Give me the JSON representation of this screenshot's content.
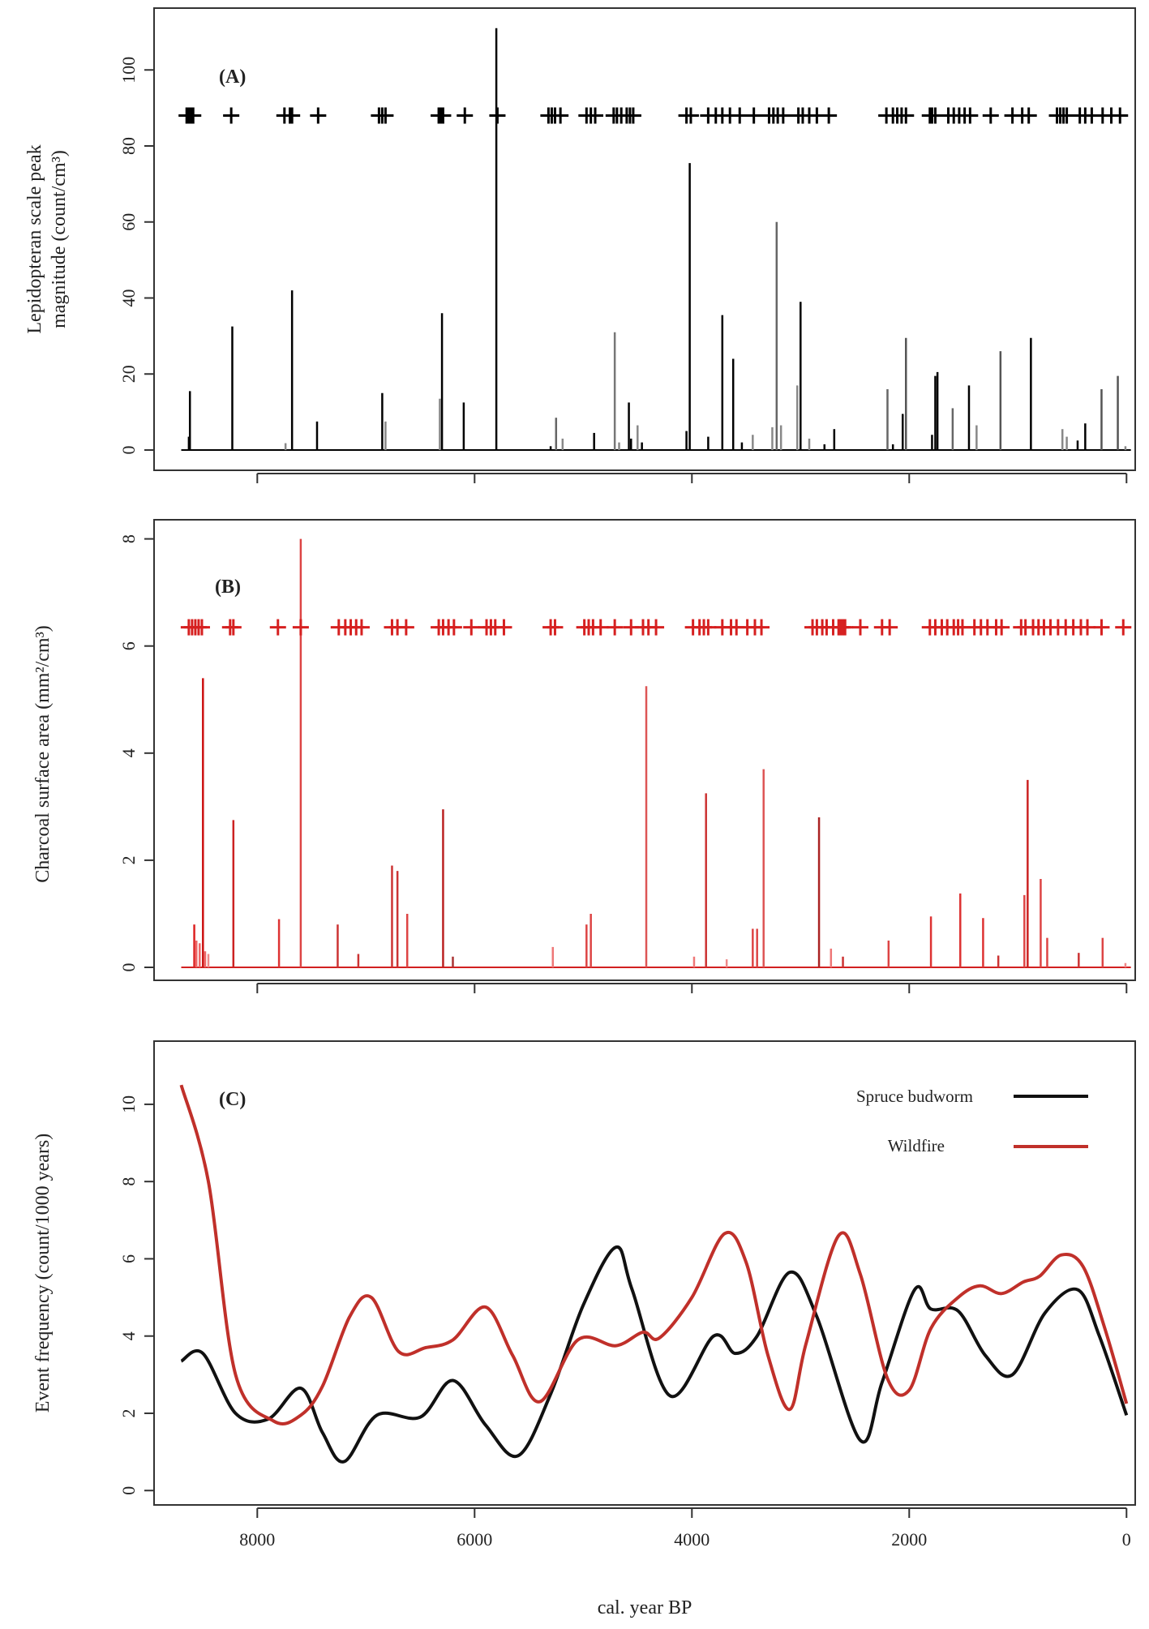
{
  "figure": {
    "xlabel": "cal. year BP",
    "x_ticks": [
      8000,
      6000,
      4000,
      2000,
      0
    ]
  },
  "chart_data": [
    {
      "type": "bar",
      "panel_label": "(A)",
      "ylabel_line1": "Lepidopteran scale peak",
      "ylabel_line2": "magnitude (count/cm³)",
      "xlim": [
        8950,
        -80
      ],
      "ylim": [
        0,
        112
      ],
      "y_ticks": [
        0,
        20,
        40,
        60,
        80,
        100
      ],
      "bar_color": "#000000",
      "bars": [
        {
          "x": 8620,
          "v": 15.5,
          "c": "#000"
        },
        {
          "x": 8630,
          "v": 3.5,
          "c": "#000"
        },
        {
          "x": 8230,
          "v": 32.5,
          "c": "#000"
        },
        {
          "x": 7740,
          "v": 1.8,
          "c": "#888"
        },
        {
          "x": 7680,
          "v": 42,
          "c": "#000"
        },
        {
          "x": 7450,
          "v": 7.5,
          "c": "#000"
        },
        {
          "x": 6850,
          "v": 15,
          "c": "#000"
        },
        {
          "x": 6820,
          "v": 7.5,
          "c": "#888"
        },
        {
          "x": 6320,
          "v": 13.5,
          "c": "#888"
        },
        {
          "x": 6300,
          "v": 36,
          "c": "#000"
        },
        {
          "x": 6100,
          "v": 12.5,
          "c": "#000"
        },
        {
          "x": 5800,
          "v": 111,
          "c": "#000"
        },
        {
          "x": 5300,
          "v": 1,
          "c": "#000"
        },
        {
          "x": 5250,
          "v": 8.5,
          "c": "#666"
        },
        {
          "x": 5190,
          "v": 3,
          "c": "#888"
        },
        {
          "x": 4900,
          "v": 4.5,
          "c": "#000"
        },
        {
          "x": 4710,
          "v": 31,
          "c": "#777"
        },
        {
          "x": 4670,
          "v": 2,
          "c": "#888"
        },
        {
          "x": 4580,
          "v": 12.5,
          "c": "#000"
        },
        {
          "x": 4560,
          "v": 3,
          "c": "#000"
        },
        {
          "x": 4500,
          "v": 6.5,
          "c": "#888"
        },
        {
          "x": 4460,
          "v": 2,
          "c": "#000"
        },
        {
          "x": 4050,
          "v": 5,
          "c": "#000"
        },
        {
          "x": 4020,
          "v": 75.5,
          "c": "#000"
        },
        {
          "x": 3850,
          "v": 3.5,
          "c": "#000"
        },
        {
          "x": 3720,
          "v": 35.5,
          "c": "#000"
        },
        {
          "x": 3620,
          "v": 24,
          "c": "#000"
        },
        {
          "x": 3540,
          "v": 2,
          "c": "#000"
        },
        {
          "x": 3440,
          "v": 4,
          "c": "#888"
        },
        {
          "x": 3260,
          "v": 6,
          "c": "#888"
        },
        {
          "x": 3220,
          "v": 60,
          "c": "#666"
        },
        {
          "x": 3180,
          "v": 6.5,
          "c": "#888"
        },
        {
          "x": 3030,
          "v": 17,
          "c": "#888"
        },
        {
          "x": 3000,
          "v": 39,
          "c": "#000"
        },
        {
          "x": 2920,
          "v": 3,
          "c": "#888"
        },
        {
          "x": 2780,
          "v": 1.5,
          "c": "#000"
        },
        {
          "x": 2690,
          "v": 5.5,
          "c": "#000"
        },
        {
          "x": 2200,
          "v": 16,
          "c": "#666"
        },
        {
          "x": 2150,
          "v": 1.5,
          "c": "#000"
        },
        {
          "x": 2060,
          "v": 9.5,
          "c": "#000"
        },
        {
          "x": 2030,
          "v": 29.5,
          "c": "#555"
        },
        {
          "x": 1790,
          "v": 4,
          "c": "#000"
        },
        {
          "x": 1760,
          "v": 19.5,
          "c": "#000"
        },
        {
          "x": 1740,
          "v": 20.5,
          "c": "#000"
        },
        {
          "x": 1600,
          "v": 11,
          "c": "#666"
        },
        {
          "x": 1450,
          "v": 17,
          "c": "#000"
        },
        {
          "x": 1380,
          "v": 6.5,
          "c": "#888"
        },
        {
          "x": 1160,
          "v": 26,
          "c": "#555"
        },
        {
          "x": 880,
          "v": 29.5,
          "c": "#000"
        },
        {
          "x": 590,
          "v": 5.5,
          "c": "#888"
        },
        {
          "x": 550,
          "v": 3.5,
          "c": "#888"
        },
        {
          "x": 450,
          "v": 2.5,
          "c": "#000"
        },
        {
          "x": 380,
          "v": 7,
          "c": "#000"
        },
        {
          "x": 230,
          "v": 16,
          "c": "#555"
        },
        {
          "x": 80,
          "v": 19.5,
          "c": "#555"
        },
        {
          "x": 10,
          "v": 1,
          "c": "#888"
        }
      ],
      "events_y": 88,
      "events_color": "#000000",
      "events": [
        8650,
        8630,
        8610,
        8590,
        8240,
        7750,
        7700,
        7680,
        7440,
        6880,
        6850,
        6820,
        6330,
        6310,
        6290,
        6090,
        5790,
        5320,
        5290,
        5260,
        5210,
        4970,
        4930,
        4890,
        4720,
        4690,
        4650,
        4600,
        4570,
        4540,
        4050,
        4010,
        3850,
        3780,
        3720,
        3650,
        3560,
        3430,
        3290,
        3250,
        3210,
        3160,
        3020,
        2980,
        2920,
        2850,
        2740,
        2210,
        2150,
        2110,
        2070,
        2030,
        1810,
        1790,
        1760,
        1640,
        1590,
        1540,
        1490,
        1440,
        1250,
        1050,
        960,
        900,
        640,
        610,
        580,
        550,
        430,
        380,
        320,
        220,
        140,
        60
      ]
    },
    {
      "type": "bar",
      "panel_label": "(B)",
      "ylabel": "Charcoal surface area (mm²/cm³)",
      "xlim": [
        8950,
        -80
      ],
      "ylim": [
        0,
        8.1
      ],
      "y_ticks": [
        0,
        2,
        4,
        6,
        8
      ],
      "bar_color": "#d22020",
      "bars": [
        {
          "x": 8580,
          "v": 0.8,
          "c": "#d22"
        },
        {
          "x": 8560,
          "v": 0.5,
          "c": "#e66"
        },
        {
          "x": 8530,
          "v": 0.45,
          "c": "#e66"
        },
        {
          "x": 8500,
          "v": 5.4,
          "c": "#c11"
        },
        {
          "x": 8480,
          "v": 0.3,
          "c": "#e66"
        },
        {
          "x": 8450,
          "v": 0.25,
          "c": "#e88"
        },
        {
          "x": 8220,
          "v": 2.75,
          "c": "#c22"
        },
        {
          "x": 7800,
          "v": 0.9,
          "c": "#d33"
        },
        {
          "x": 7600,
          "v": 8,
          "c": "#d44"
        },
        {
          "x": 7260,
          "v": 0.8,
          "c": "#c33"
        },
        {
          "x": 7070,
          "v": 0.25,
          "c": "#c33"
        },
        {
          "x": 6760,
          "v": 1.9,
          "c": "#c33"
        },
        {
          "x": 6710,
          "v": 1.8,
          "c": "#c33"
        },
        {
          "x": 6620,
          "v": 1,
          "c": "#d44"
        },
        {
          "x": 6290,
          "v": 2.95,
          "c": "#b22"
        },
        {
          "x": 6200,
          "v": 0.2,
          "c": "#a33"
        },
        {
          "x": 5280,
          "v": 0.38,
          "c": "#e77"
        },
        {
          "x": 4970,
          "v": 0.8,
          "c": "#d44"
        },
        {
          "x": 4930,
          "v": 1,
          "c": "#d44"
        },
        {
          "x": 4420,
          "v": 5.25,
          "c": "#d55"
        },
        {
          "x": 3980,
          "v": 0.2,
          "c": "#e77"
        },
        {
          "x": 3870,
          "v": 3.25,
          "c": "#c33"
        },
        {
          "x": 3680,
          "v": 0.15,
          "c": "#e88"
        },
        {
          "x": 3440,
          "v": 0.72,
          "c": "#d44"
        },
        {
          "x": 3400,
          "v": 0.72,
          "c": "#d44"
        },
        {
          "x": 3340,
          "v": 3.7,
          "c": "#d55"
        },
        {
          "x": 2830,
          "v": 2.8,
          "c": "#a22"
        },
        {
          "x": 2720,
          "v": 0.35,
          "c": "#e77"
        },
        {
          "x": 2610,
          "v": 0.2,
          "c": "#c33"
        },
        {
          "x": 2190,
          "v": 0.5,
          "c": "#d44"
        },
        {
          "x": 1800,
          "v": 0.95,
          "c": "#d33"
        },
        {
          "x": 1530,
          "v": 1.38,
          "c": "#d33"
        },
        {
          "x": 1320,
          "v": 0.92,
          "c": "#d33"
        },
        {
          "x": 1180,
          "v": 0.22,
          "c": "#c33"
        },
        {
          "x": 940,
          "v": 1.35,
          "c": "#d44"
        },
        {
          "x": 910,
          "v": 3.5,
          "c": "#c22"
        },
        {
          "x": 790,
          "v": 1.65,
          "c": "#d44"
        },
        {
          "x": 730,
          "v": 0.55,
          "c": "#d44"
        },
        {
          "x": 440,
          "v": 0.27,
          "c": "#c33"
        },
        {
          "x": 220,
          "v": 0.55,
          "c": "#d44"
        },
        {
          "x": 10,
          "v": 0.08,
          "c": "#e88"
        }
      ],
      "events_y": 6.35,
      "events_color": "#d62020",
      "events": [
        8630,
        8600,
        8570,
        8540,
        8510,
        8250,
        8220,
        7810,
        7600,
        7250,
        7190,
        7140,
        7090,
        7040,
        6760,
        6710,
        6630,
        6330,
        6290,
        6240,
        6190,
        6030,
        5890,
        5850,
        5810,
        5730,
        5300,
        5260,
        4990,
        4950,
        4910,
        4840,
        4710,
        4560,
        4450,
        4400,
        4330,
        3990,
        3930,
        3890,
        3850,
        3720,
        3640,
        3590,
        3490,
        3420,
        3360,
        2890,
        2850,
        2800,
        2760,
        2700,
        2650,
        2630,
        2610,
        2590,
        2450,
        2250,
        2180,
        1810,
        1760,
        1700,
        1650,
        1590,
        1550,
        1510,
        1400,
        1340,
        1280,
        1200,
        1150,
        970,
        930,
        860,
        810,
        760,
        700,
        630,
        560,
        490,
        420,
        360,
        230,
        30
      ]
    },
    {
      "type": "line",
      "panel_label": "(C)",
      "ylabel": "Event frequency (count/1000 years)",
      "xlim": [
        8950,
        -80
      ],
      "ylim": [
        -0.1,
        11.3
      ],
      "y_ticks": [
        0,
        2,
        4,
        6,
        8,
        10
      ],
      "legend_position": "top-right",
      "series": [
        {
          "name": "Spruce budworm",
          "color": "#111111",
          "points": [
            [
              8700,
              3.35
            ],
            [
              8500,
              3.55
            ],
            [
              8200,
              2.0
            ],
            [
              7900,
              1.85
            ],
            [
              7600,
              2.65
            ],
            [
              7400,
              1.5
            ],
            [
              7200,
              0.75
            ],
            [
              6900,
              1.95
            ],
            [
              6500,
              1.9
            ],
            [
              6200,
              2.85
            ],
            [
              5900,
              1.7
            ],
            [
              5600,
              0.9
            ],
            [
              5300,
              2.5
            ],
            [
              5000,
              4.8
            ],
            [
              4700,
              6.3
            ],
            [
              4550,
              5.2
            ],
            [
              4200,
              2.45
            ],
            [
              3800,
              4.0
            ],
            [
              3600,
              3.55
            ],
            [
              3400,
              4.0
            ],
            [
              3100,
              5.65
            ],
            [
              2850,
              4.5
            ],
            [
              2450,
              1.3
            ],
            [
              2250,
              2.8
            ],
            [
              1950,
              5.2
            ],
            [
              1800,
              4.7
            ],
            [
              1550,
              4.65
            ],
            [
              1300,
              3.5
            ],
            [
              1050,
              3.0
            ],
            [
              750,
              4.6
            ],
            [
              450,
              5.2
            ],
            [
              250,
              4.0
            ],
            [
              0,
              1.95
            ]
          ]
        },
        {
          "name": "Wildfire",
          "color": "#c0302a",
          "points": [
            [
              8700,
              10.5
            ],
            [
              8450,
              8.0
            ],
            [
              8200,
              3.0
            ],
            [
              7850,
              1.8
            ],
            [
              7600,
              1.95
            ],
            [
              7400,
              2.7
            ],
            [
              7150,
              4.5
            ],
            [
              6950,
              5.0
            ],
            [
              6700,
              3.6
            ],
            [
              6450,
              3.7
            ],
            [
              6200,
              3.9
            ],
            [
              5900,
              4.75
            ],
            [
              5650,
              3.5
            ],
            [
              5400,
              2.3
            ],
            [
              5050,
              3.9
            ],
            [
              4700,
              3.75
            ],
            [
              4450,
              4.1
            ],
            [
              4300,
              3.95
            ],
            [
              4000,
              5.0
            ],
            [
              3700,
              6.65
            ],
            [
              3500,
              5.9
            ],
            [
              3300,
              3.5
            ],
            [
              3100,
              2.1
            ],
            [
              2950,
              3.8
            ],
            [
              2650,
              6.6
            ],
            [
              2450,
              5.6
            ],
            [
              2200,
              2.9
            ],
            [
              2000,
              2.6
            ],
            [
              1800,
              4.2
            ],
            [
              1550,
              5.0
            ],
            [
              1350,
              5.3
            ],
            [
              1150,
              5.1
            ],
            [
              950,
              5.4
            ],
            [
              800,
              5.55
            ],
            [
              600,
              6.1
            ],
            [
              400,
              5.8
            ],
            [
              200,
              4.2
            ],
            [
              0,
              2.25
            ]
          ]
        }
      ]
    }
  ]
}
